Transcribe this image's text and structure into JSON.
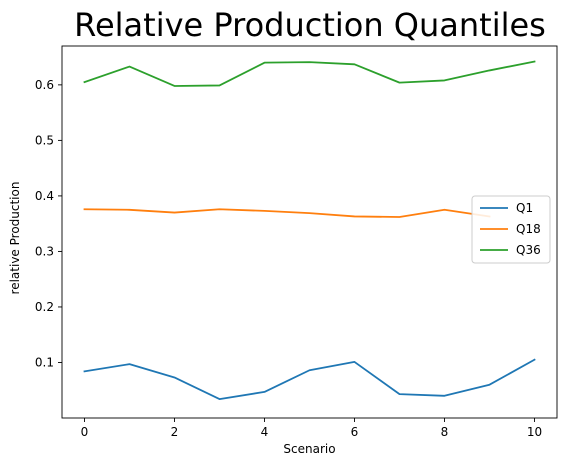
{
  "chart_data": {
    "type": "line",
    "title": "Relative Production Quantiles",
    "xlabel": "Scenario",
    "ylabel": "relative Production",
    "xlim": [
      -0.5,
      10.5
    ],
    "ylim": [
      0.0,
      0.67
    ],
    "xticks": [
      0,
      2,
      4,
      6,
      8,
      10
    ],
    "yticks": [
      0.1,
      0.2,
      0.3,
      0.4,
      0.5,
      0.6
    ],
    "ytick_labels": [
      "0.1",
      "0.2",
      "0.3",
      "0.4",
      "0.5",
      "0.6"
    ],
    "legend_position": "center-right",
    "series": [
      {
        "name": "Q1",
        "color": "#1f77b4",
        "x": [
          0,
          1,
          2,
          3,
          4,
          5,
          6,
          7,
          8,
          9,
          10
        ],
        "values": [
          0.084,
          0.097,
          0.073,
          0.034,
          0.047,
          0.086,
          0.101,
          0.043,
          0.04,
          0.06,
          0.105
        ]
      },
      {
        "name": "Q18",
        "color": "#ff7f0e",
        "x": [
          0,
          1,
          2,
          3,
          4,
          5,
          6,
          7,
          8,
          9
        ],
        "values": [
          0.376,
          0.375,
          0.37,
          0.376,
          0.373,
          0.369,
          0.363,
          0.362,
          0.375,
          0.363
        ]
      },
      {
        "name": "Q36",
        "color": "#2ca02c",
        "x": [
          0,
          1,
          2,
          3,
          4,
          5,
          6,
          7,
          8,
          9,
          10
        ],
        "values": [
          0.605,
          0.633,
          0.598,
          0.599,
          0.64,
          0.641,
          0.637,
          0.604,
          0.608,
          0.626,
          0.642
        ]
      }
    ]
  }
}
